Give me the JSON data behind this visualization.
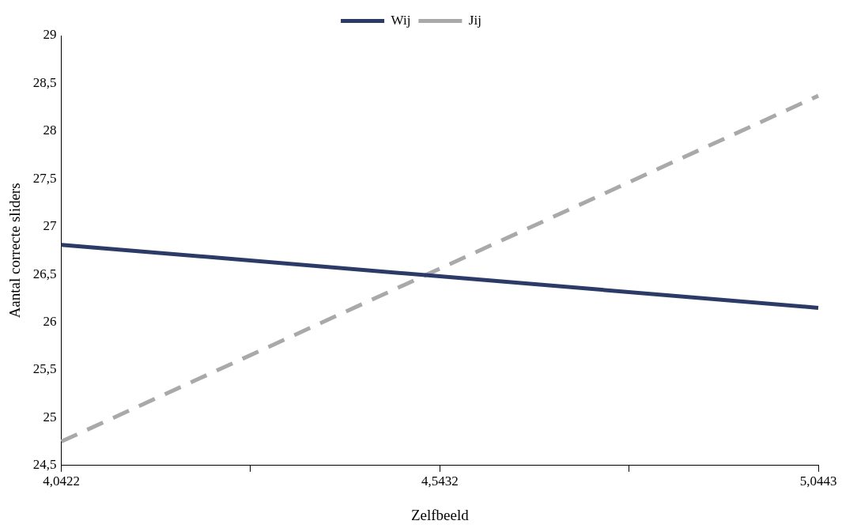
{
  "chart_data": {
    "type": "line",
    "xlabel": "Zelfbeeld",
    "ylabel": "Aantal correcte sliders",
    "categories": [
      "4,0422",
      null,
      "4,5432",
      null,
      "5,0443"
    ],
    "ylim": [
      24.5,
      29
    ],
    "yticks": [
      {
        "value": 24.5,
        "label": "24,5"
      },
      25,
      {
        "value": 25.5,
        "label": "25,5"
      },
      26,
      {
        "value": 26.5,
        "label": "26,5"
      },
      27,
      {
        "value": 27.5,
        "label": "27,5"
      },
      28,
      {
        "value": 28.5,
        "label": "28,5"
      },
      29
    ],
    "series": [
      {
        "name": "Wij",
        "color": "#2b3a67",
        "line_style": "solid",
        "values": [
          26.81,
          null,
          26.48,
          null,
          26.15
        ]
      },
      {
        "name": "Jij",
        "color": "#a9a9ab",
        "line_style": "dashed",
        "values": [
          24.75,
          null,
          26.56,
          null,
          28.37
        ]
      }
    ],
    "legend": "top",
    "marker": "none",
    "grid": false
  }
}
